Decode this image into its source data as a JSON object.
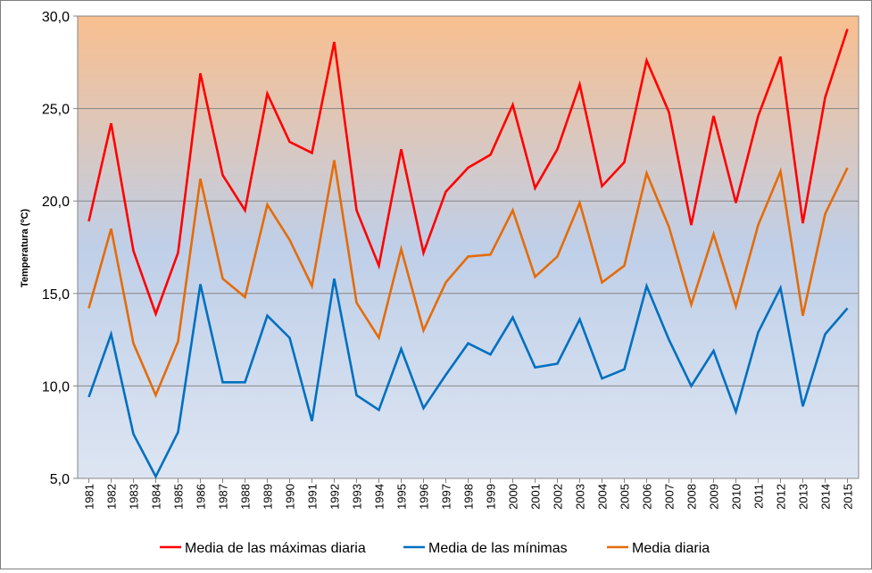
{
  "chart_data": {
    "type": "line",
    "title": "",
    "xlabel": "",
    "ylabel": "Temperatura (ºC)",
    "ylim": [
      5,
      30
    ],
    "yticks": [
      "5,0",
      "10,0",
      "15,0",
      "20,0",
      "25,0",
      "30,0"
    ],
    "grid": true,
    "legend_position": "bottom",
    "background": "vertical gradient from orange (top) to light blue (bottom)",
    "categories": [
      "1981",
      "1982",
      "1983",
      "1984",
      "1985",
      "1986",
      "1987",
      "1988",
      "1989",
      "1990",
      "1991",
      "1992",
      "1993",
      "1994",
      "1995",
      "1996",
      "1997",
      "1998",
      "1999",
      "2000",
      "2001",
      "2002",
      "2003",
      "2004",
      "2005",
      "2006",
      "2007",
      "2008",
      "2009",
      "2010",
      "2011",
      "2012",
      "2013",
      "2014",
      "2015"
    ],
    "series": [
      {
        "name": "Media de las máximas diaria",
        "color": "#ff0000",
        "values": [
          18.9,
          24.2,
          17.3,
          13.9,
          17.2,
          26.9,
          21.4,
          19.5,
          25.8,
          23.2,
          22.6,
          28.6,
          19.5,
          16.5,
          22.8,
          17.2,
          20.5,
          21.8,
          22.5,
          25.2,
          20.7,
          22.8,
          26.3,
          20.8,
          22.1,
          27.6,
          24.8,
          18.7,
          24.6,
          19.9,
          24.6,
          27.8,
          18.8,
          25.6,
          29.3
        ]
      },
      {
        "name": "Media de las mínimas",
        "color": "#0070c0",
        "values": [
          9.4,
          12.8,
          7.4,
          5.1,
          7.5,
          15.5,
          10.2,
          10.2,
          13.8,
          12.6,
          8.1,
          15.8,
          9.5,
          8.7,
          12.0,
          8.8,
          10.6,
          12.3,
          11.7,
          13.7,
          11.0,
          11.2,
          13.6,
          10.4,
          10.9,
          15.4,
          12.5,
          10.0,
          11.9,
          8.6,
          12.9,
          15.3,
          8.9,
          12.8,
          14.2
        ]
      },
      {
        "name": "Media diaria",
        "color": "#e46c0a",
        "values": [
          14.2,
          18.5,
          12.3,
          9.5,
          12.4,
          21.2,
          15.8,
          14.8,
          19.8,
          17.9,
          15.4,
          22.2,
          14.5,
          12.6,
          17.4,
          13.0,
          15.6,
          17.0,
          17.1,
          19.5,
          15.9,
          17.0,
          19.9,
          15.6,
          16.5,
          21.5,
          18.6,
          14.4,
          18.2,
          14.3,
          18.7,
          21.6,
          13.8,
          19.3,
          21.8
        ]
      }
    ]
  }
}
